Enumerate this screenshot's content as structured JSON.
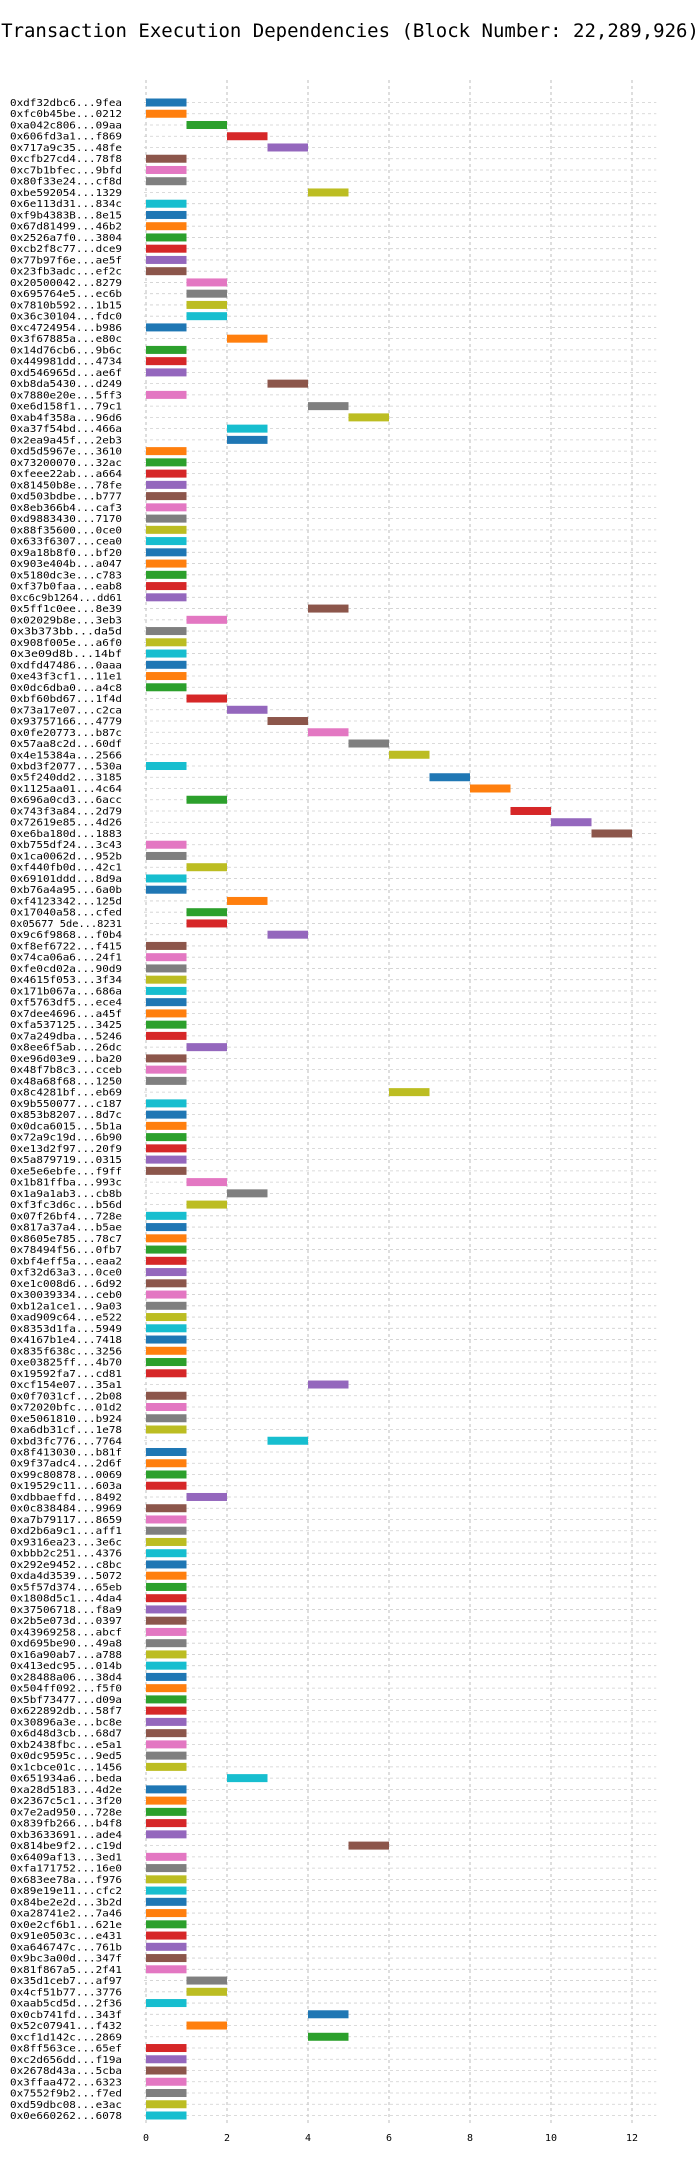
{
  "chart_data": {
    "type": "gantt",
    "title": "Transaction Execution Dependencies (Block Number: 22,289,926)",
    "xlabel": "",
    "ylabel": "",
    "xlim": [
      0,
      12.6
    ],
    "xticks": [
      0,
      2,
      4,
      6,
      8,
      10,
      12
    ],
    "grid": true,
    "palette": [
      "#1f77b4",
      "#ff7f0e",
      "#2ca02c",
      "#d62728",
      "#9467bd",
      "#8c564b",
      "#e377c2",
      "#7f7f7f",
      "#bcbd22",
      "#17becf"
    ],
    "tasks": [
      {
        "label": "0xdf32dbc6...9fea",
        "start": 0,
        "end": 1
      },
      {
        "label": "0xfc0b45be...0212",
        "start": 0,
        "end": 1
      },
      {
        "label": "0xa042c806...09aa",
        "start": 1,
        "end": 2
      },
      {
        "label": "0x606fd3a1...f869",
        "start": 2,
        "end": 3
      },
      {
        "label": "0x717a9c35...48fe",
        "start": 3,
        "end": 4
      },
      {
        "label": "0xcfb27cd4...78f8",
        "start": 0,
        "end": 1
      },
      {
        "label": "0xc7b1bfec...9bfd",
        "start": 0,
        "end": 1
      },
      {
        "label": "0x80f33e24...cf8d",
        "start": 0,
        "end": 1
      },
      {
        "label": "0xbe592054...1329",
        "start": 4,
        "end": 5
      },
      {
        "label": "0x6e113d31...834c",
        "start": 0,
        "end": 1
      },
      {
        "label": "0xf9b4383B...8e15",
        "start": 0,
        "end": 1
      },
      {
        "label": "0x67d81499...46b2",
        "start": 0,
        "end": 1
      },
      {
        "label": "0x2526a7f0...3804",
        "start": 0,
        "end": 1
      },
      {
        "label": "0xcb2f8c77...dce9",
        "start": 0,
        "end": 1
      },
      {
        "label": "0x77b97f6e...ae5f",
        "start": 0,
        "end": 1
      },
      {
        "label": "0x23fb3adc...ef2c",
        "start": 0,
        "end": 1
      },
      {
        "label": "0x20500042...8279",
        "start": 1,
        "end": 2
      },
      {
        "label": "0x695764e5...ec6b",
        "start": 1,
        "end": 2
      },
      {
        "label": "0x7810b592...1b15",
        "start": 1,
        "end": 2
      },
      {
        "label": "0x36c30104...fdc0",
        "start": 1,
        "end": 2
      },
      {
        "label": "0xc4724954...b986",
        "start": 0,
        "end": 1
      },
      {
        "label": "0x3f67885a...e80c",
        "start": 2,
        "end": 3
      },
      {
        "label": "0x14d76cb6...9b6c",
        "start": 0,
        "end": 1
      },
      {
        "label": "0x449981dd...4734",
        "start": 0,
        "end": 1
      },
      {
        "label": "0xd546965d...ae6f",
        "start": 0,
        "end": 1
      },
      {
        "label": "0xb8da5430...d249",
        "start": 3,
        "end": 4
      },
      {
        "label": "0x7880e20e...5ff3",
        "start": 0,
        "end": 1
      },
      {
        "label": "0xe6d158f1...79c1",
        "start": 4,
        "end": 5
      },
      {
        "label": "0xab4f358a...96d6",
        "start": 5,
        "end": 6
      },
      {
        "label": "0xa37f54bd...466a",
        "start": 2,
        "end": 3
      },
      {
        "label": "0x2ea9a45f...2eb3",
        "start": 2,
        "end": 3
      },
      {
        "label": "0xd5d5967e...3610",
        "start": 0,
        "end": 1
      },
      {
        "label": "0x73200070...32ac",
        "start": 0,
        "end": 1
      },
      {
        "label": "0xfeee22ab...a664",
        "start": 0,
        "end": 1
      },
      {
        "label": "0x81450b8e...78fe",
        "start": 0,
        "end": 1
      },
      {
        "label": "0xd503bdbe...b777",
        "start": 0,
        "end": 1
      },
      {
        "label": "0x8eb366b4...caf3",
        "start": 0,
        "end": 1
      },
      {
        "label": "0xd9883430...7170",
        "start": 0,
        "end": 1
      },
      {
        "label": "0x88f35600...0ce0",
        "start": 0,
        "end": 1
      },
      {
        "label": "0x633f6307...cea0",
        "start": 0,
        "end": 1
      },
      {
        "label": "0x9a18b8f0...bf20",
        "start": 0,
        "end": 1
      },
      {
        "label": "0x903e404b...a047",
        "start": 0,
        "end": 1
      },
      {
        "label": "0x5180dc3e...c783",
        "start": 0,
        "end": 1
      },
      {
        "label": "0xf37b0faa...eab8",
        "start": 0,
        "end": 1
      },
      {
        "label": "0xc6c9b1264...dd61",
        "start": 0,
        "end": 1
      },
      {
        "label": "0x5ff1c0ee...8e39",
        "start": 4,
        "end": 5
      },
      {
        "label": "0x02029b8e...3eb3",
        "start": 1,
        "end": 2
      },
      {
        "label": "0x3b373bb...da5d",
        "start": 0,
        "end": 1
      },
      {
        "label": "0x908f005e...a6f0",
        "start": 0,
        "end": 1
      },
      {
        "label": "0x3e09d8b...14bf",
        "start": 0,
        "end": 1
      },
      {
        "label": "0xdfd47486...0aaa",
        "start": 0,
        "end": 1
      },
      {
        "label": "0xe43f3cf1...11e1",
        "start": 0,
        "end": 1
      },
      {
        "label": "0x0dc6dba0...a4c8",
        "start": 0,
        "end": 1
      },
      {
        "label": "0xbf60bd67...1f4d",
        "start": 1,
        "end": 2
      },
      {
        "label": "0x73a17e07...c2ca",
        "start": 2,
        "end": 3
      },
      {
        "label": "0x93757166...4779",
        "start": 3,
        "end": 4
      },
      {
        "label": "0x0fe20773...b87c",
        "start": 4,
        "end": 5
      },
      {
        "label": "0x57aa8c2d...60df",
        "start": 5,
        "end": 6
      },
      {
        "label": "0x4e15384a...2566",
        "start": 6,
        "end": 7
      },
      {
        "label": "0xbd3f2077...530a",
        "start": 0,
        "end": 1
      },
      {
        "label": "0x5f240dd2...3185",
        "start": 7,
        "end": 8
      },
      {
        "label": "0x1125aa01...4c64",
        "start": 8,
        "end": 9
      },
      {
        "label": "0x696a0cd3...6acc",
        "start": 1,
        "end": 2
      },
      {
        "label": "0x743f3a84...2d79",
        "start": 9,
        "end": 10
      },
      {
        "label": "0x72619e85...4d26",
        "start": 10,
        "end": 11
      },
      {
        "label": "0xe6ba180d...1883",
        "start": 11,
        "end": 12
      },
      {
        "label": "0xb755df24...3c43",
        "start": 0,
        "end": 1
      },
      {
        "label": "0x1ca0062d...952b",
        "start": 0,
        "end": 1
      },
      {
        "label": "0xf440fb0d...42c1",
        "start": 1,
        "end": 2
      },
      {
        "label": "0x69101ddd...8d9a",
        "start": 0,
        "end": 1
      },
      {
        "label": "0xb76a4a95...6a0b",
        "start": 0,
        "end": 1
      },
      {
        "label": "0xf4123342...125d",
        "start": 2,
        "end": 3
      },
      {
        "label": "0x17040a58...cfed",
        "start": 1,
        "end": 2
      },
      {
        "label": "0x05677 5de...8231",
        "start": 1,
        "end": 2
      },
      {
        "label": "0x9c6f9868...f0b4",
        "start": 3,
        "end": 4
      },
      {
        "label": "0xf8ef6722...f415",
        "start": 0,
        "end": 1
      },
      {
        "label": "0x74ca06a6...24f1",
        "start": 0,
        "end": 1
      },
      {
        "label": "0xfe0cd02a...90d9",
        "start": 0,
        "end": 1
      },
      {
        "label": "0x4615f053...3f34",
        "start": 0,
        "end": 1
      },
      {
        "label": "0x171b067a...686a",
        "start": 0,
        "end": 1
      },
      {
        "label": "0xf5763df5...ece4",
        "start": 0,
        "end": 1
      },
      {
        "label": "0x7dee4696...a45f",
        "start": 0,
        "end": 1
      },
      {
        "label": "0xfa537125...3425",
        "start": 0,
        "end": 1
      },
      {
        "label": "0x7a249dba...5246",
        "start": 0,
        "end": 1
      },
      {
        "label": "0x8ee6f5ab...26dc",
        "start": 1,
        "end": 2
      },
      {
        "label": "0xe96d03e9...ba20",
        "start": 0,
        "end": 1
      },
      {
        "label": "0x48f7b8c3...cceb",
        "start": 0,
        "end": 1
      },
      {
        "label": "0x48a68f68...1250",
        "start": 0,
        "end": 1
      },
      {
        "label": "0x8c4281bf...eb69",
        "start": 6,
        "end": 7
      },
      {
        "label": "0x9b550077...c187",
        "start": 0,
        "end": 1
      },
      {
        "label": "0x853b8207...8d7c",
        "start": 0,
        "end": 1
      },
      {
        "label": "0x0dca6015...5b1a",
        "start": 0,
        "end": 1
      },
      {
        "label": "0x72a9c19d...6b90",
        "start": 0,
        "end": 1
      },
      {
        "label": "0xe13d2f97...20f9",
        "start": 0,
        "end": 1
      },
      {
        "label": "0x5a879719...0315",
        "start": 0,
        "end": 1
      },
      {
        "label": "0xe5e6ebfe...f9ff",
        "start": 0,
        "end": 1
      },
      {
        "label": "0x1b81ffba...993c",
        "start": 1,
        "end": 2
      },
      {
        "label": "0x1a9a1ab3...cb8b",
        "start": 2,
        "end": 3
      },
      {
        "label": "0xf3fc3d6c...b56d",
        "start": 1,
        "end": 2
      },
      {
        "label": "0x07f26bf4...728e",
        "start": 0,
        "end": 1
      },
      {
        "label": "0x817a37a4...b5ae",
        "start": 0,
        "end": 1
      },
      {
        "label": "0x8605e785...78c7",
        "start": 0,
        "end": 1
      },
      {
        "label": "0x78494f56...0fb7",
        "start": 0,
        "end": 1
      },
      {
        "label": "0xbf4eff5a...eaa2",
        "start": 0,
        "end": 1
      },
      {
        "label": "0xf32d63a3...0ce0",
        "start": 0,
        "end": 1
      },
      {
        "label": "0xe1c008d6...6d92",
        "start": 0,
        "end": 1
      },
      {
        "label": "0x30039334...ceb0",
        "start": 0,
        "end": 1
      },
      {
        "label": "0xb12a1ce1...9a03",
        "start": 0,
        "end": 1
      },
      {
        "label": "0xad909c64...e522",
        "start": 0,
        "end": 1
      },
      {
        "label": "0x8353d1fa...5949",
        "start": 0,
        "end": 1
      },
      {
        "label": "0x4167b1e4...7418",
        "start": 0,
        "end": 1
      },
      {
        "label": "0x835f638c...3256",
        "start": 0,
        "end": 1
      },
      {
        "label": "0xe03825ff...4b70",
        "start": 0,
        "end": 1
      },
      {
        "label": "0x19592fa7...cd81",
        "start": 0,
        "end": 1
      },
      {
        "label": "0xcf154e07...35a1",
        "start": 4,
        "end": 5
      },
      {
        "label": "0x0f7031cf...2b08",
        "start": 0,
        "end": 1
      },
      {
        "label": "0x72020bfc...01d2",
        "start": 0,
        "end": 1
      },
      {
        "label": "0xe5061810...b924",
        "start": 0,
        "end": 1
      },
      {
        "label": "0xa6db31cf...1e78",
        "start": 0,
        "end": 1
      },
      {
        "label": "0xbd3fc776...7764",
        "start": 3,
        "end": 4
      },
      {
        "label": "0x8f413030...b81f",
        "start": 0,
        "end": 1
      },
      {
        "label": "0x9f37adc4...2d6f",
        "start": 0,
        "end": 1
      },
      {
        "label": "0x99c80878...0069",
        "start": 0,
        "end": 1
      },
      {
        "label": "0x19529c11...603a",
        "start": 0,
        "end": 1
      },
      {
        "label": "0xdbbaeffd...8492",
        "start": 1,
        "end": 2
      },
      {
        "label": "0x0c838484...9969",
        "start": 0,
        "end": 1
      },
      {
        "label": "0xa7b79117...8659",
        "start": 0,
        "end": 1
      },
      {
        "label": "0xd2b6a9c1...aff1",
        "start": 0,
        "end": 1
      },
      {
        "label": "0x9316ea23...3e6c",
        "start": 0,
        "end": 1
      },
      {
        "label": "0xbbb2c251...4376",
        "start": 0,
        "end": 1
      },
      {
        "label": "0x292e9452...c8bc",
        "start": 0,
        "end": 1
      },
      {
        "label": "0xda4d3539...5072",
        "start": 0,
        "end": 1
      },
      {
        "label": "0x5f57d374...65eb",
        "start": 0,
        "end": 1
      },
      {
        "label": "0x1808d5c1...4da4",
        "start": 0,
        "end": 1
      },
      {
        "label": "0x37506718...f8a9",
        "start": 0,
        "end": 1
      },
      {
        "label": "0x2b5e073d...0397",
        "start": 0,
        "end": 1
      },
      {
        "label": "0x43969258...abcf",
        "start": 0,
        "end": 1
      },
      {
        "label": "0xd695be90...49a8",
        "start": 0,
        "end": 1
      },
      {
        "label": "0x16a90ab7...a788",
        "start": 0,
        "end": 1
      },
      {
        "label": "0x413edc95...014b",
        "start": 0,
        "end": 1
      },
      {
        "label": "0x28488a06...38d4",
        "start": 0,
        "end": 1
      },
      {
        "label": "0x504ff092...f5f0",
        "start": 0,
        "end": 1
      },
      {
        "label": "0x5bf73477...d09a",
        "start": 0,
        "end": 1
      },
      {
        "label": "0x622892db...58f7",
        "start": 0,
        "end": 1
      },
      {
        "label": "0x30896a3e...bc8e",
        "start": 0,
        "end": 1
      },
      {
        "label": "0x6d48d3cb...68d7",
        "start": 0,
        "end": 1
      },
      {
        "label": "0xb2438fbc...e5a1",
        "start": 0,
        "end": 1
      },
      {
        "label": "0x0dc9595c...9ed5",
        "start": 0,
        "end": 1
      },
      {
        "label": "0x1cbce01c...1456",
        "start": 0,
        "end": 1
      },
      {
        "label": "0x651934a6...beda",
        "start": 2,
        "end": 3
      },
      {
        "label": "0xa28d5183...4d2e",
        "start": 0,
        "end": 1
      },
      {
        "label": "0x2367c5c1...3f20",
        "start": 0,
        "end": 1
      },
      {
        "label": "0x7e2ad950...728e",
        "start": 0,
        "end": 1
      },
      {
        "label": "0x839fb266...b4f8",
        "start": 0,
        "end": 1
      },
      {
        "label": "0xb3633691...ade4",
        "start": 0,
        "end": 1
      },
      {
        "label": "0x814be9f2...c19d",
        "start": 5,
        "end": 6
      },
      {
        "label": "0x6409af13...3ed1",
        "start": 0,
        "end": 1
      },
      {
        "label": "0xfa171752...16e0",
        "start": 0,
        "end": 1
      },
      {
        "label": "0x683ee78a...f976",
        "start": 0,
        "end": 1
      },
      {
        "label": "0x89e19e11...cfc2",
        "start": 0,
        "end": 1
      },
      {
        "label": "0x84be2e2d...3b2d",
        "start": 0,
        "end": 1
      },
      {
        "label": "0xa28741e2...7a46",
        "start": 0,
        "end": 1
      },
      {
        "label": "0x0e2cf6b1...621e",
        "start": 0,
        "end": 1
      },
      {
        "label": "0x91e0503c...e431",
        "start": 0,
        "end": 1
      },
      {
        "label": "0xa646747c...761b",
        "start": 0,
        "end": 1
      },
      {
        "label": "0x9bc3a00d...347f",
        "start": 0,
        "end": 1
      },
      {
        "label": "0x81f867a5...2f41",
        "start": 0,
        "end": 1
      },
      {
        "label": "0x35d1ceb7...af97",
        "start": 1,
        "end": 2
      },
      {
        "label": "0x4cf51b77...3776",
        "start": 1,
        "end": 2
      },
      {
        "label": "0xaab5cd5d...2f36",
        "start": 0,
        "end": 1
      },
      {
        "label": "0x0cb741fd...343f",
        "start": 4,
        "end": 5
      },
      {
        "label": "0x52c07941...f432",
        "start": 1,
        "end": 2
      },
      {
        "label": "0xcf1d142c...2869",
        "start": 4,
        "end": 5
      },
      {
        "label": "0x8ff563ce...65ef",
        "start": 0,
        "end": 1
      },
      {
        "label": "0xc2d656dd...f19a",
        "start": 0,
        "end": 1
      },
      {
        "label": "0x2678d43a...5cba",
        "start": 0,
        "end": 1
      },
      {
        "label": "0x3ffaa472...6323",
        "start": 0,
        "end": 1
      },
      {
        "label": "0x7552f9b2...f7ed",
        "start": 0,
        "end": 1
      },
      {
        "label": "0xd59dbc08...e3ac",
        "start": 0,
        "end": 1
      },
      {
        "label": "0x0e660262...6078",
        "start": 0,
        "end": 1
      }
    ]
  }
}
